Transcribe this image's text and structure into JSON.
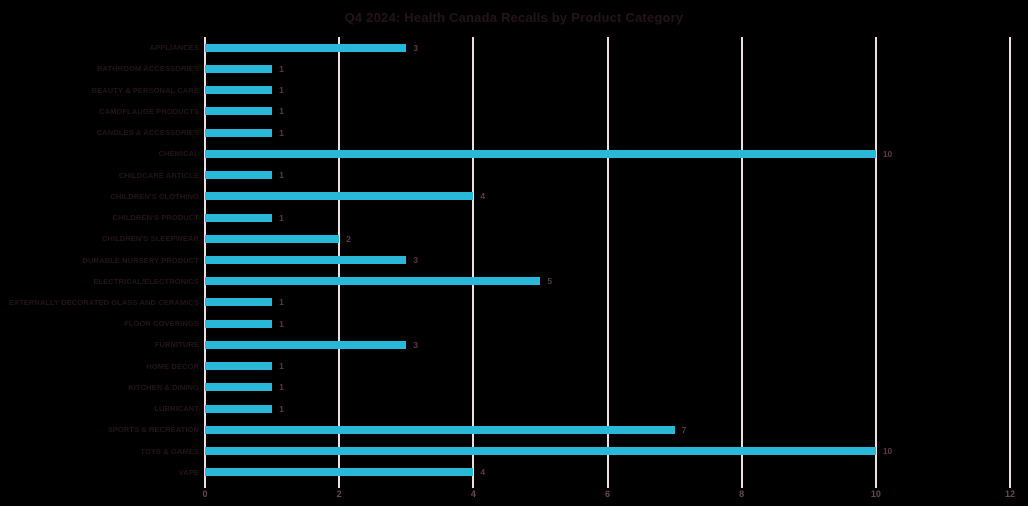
{
  "title": "Q4 2024: Health Canada Recalls by Product Category",
  "chart_data": {
    "type": "bar",
    "orientation": "horizontal",
    "title": "Q4 2024: Health Canada Recalls by Product Category",
    "categories": [
      "APPLIANCES",
      "BATHROOM ACCESSORIES",
      "BEAUTY & PERSONAL CARE",
      "CAMOFLAUGE PRODUCTS",
      "CANDLES & ACCESSORIES",
      "CHEMICAL",
      "CHILDCARE ARTICLE",
      "CHILDREN'S CLOTHING",
      "CHILDREN'S PRODUCT",
      "CHILDREN'S SLEEPWEAR",
      "DURABLE NURSERY PRODUCT",
      "ELECTRICAL/ELECTRONICS",
      "EXTERNALLY DECORATED GLASS AND CERAMICS",
      "FLOOR COVERINGS",
      "FURNITURE",
      "HOME DÉCOR",
      "KITCHEN & DINING",
      "LUBRICANT",
      "SPORTS & RECREATION",
      "TOYS & GAMES",
      "VAPE"
    ],
    "values": [
      3,
      1,
      1,
      1,
      1,
      10,
      1,
      4,
      1,
      2,
      3,
      5,
      1,
      1,
      3,
      1,
      1,
      1,
      7,
      10,
      4
    ],
    "xlabel": "",
    "ylabel": "",
    "xlim": [
      0,
      12
    ],
    "x_ticks": [
      0,
      2,
      4,
      6,
      8,
      10,
      12
    ],
    "grid": "vertical-only",
    "data_labels": true,
    "legend": "none",
    "colors": {
      "bar": "#29b8d8",
      "gridline": "#eedde3",
      "category_label": "#23141a",
      "value_label": "#5c3a46",
      "tick_label": "#6b4553",
      "title": "#241318",
      "background": "#000000"
    }
  }
}
